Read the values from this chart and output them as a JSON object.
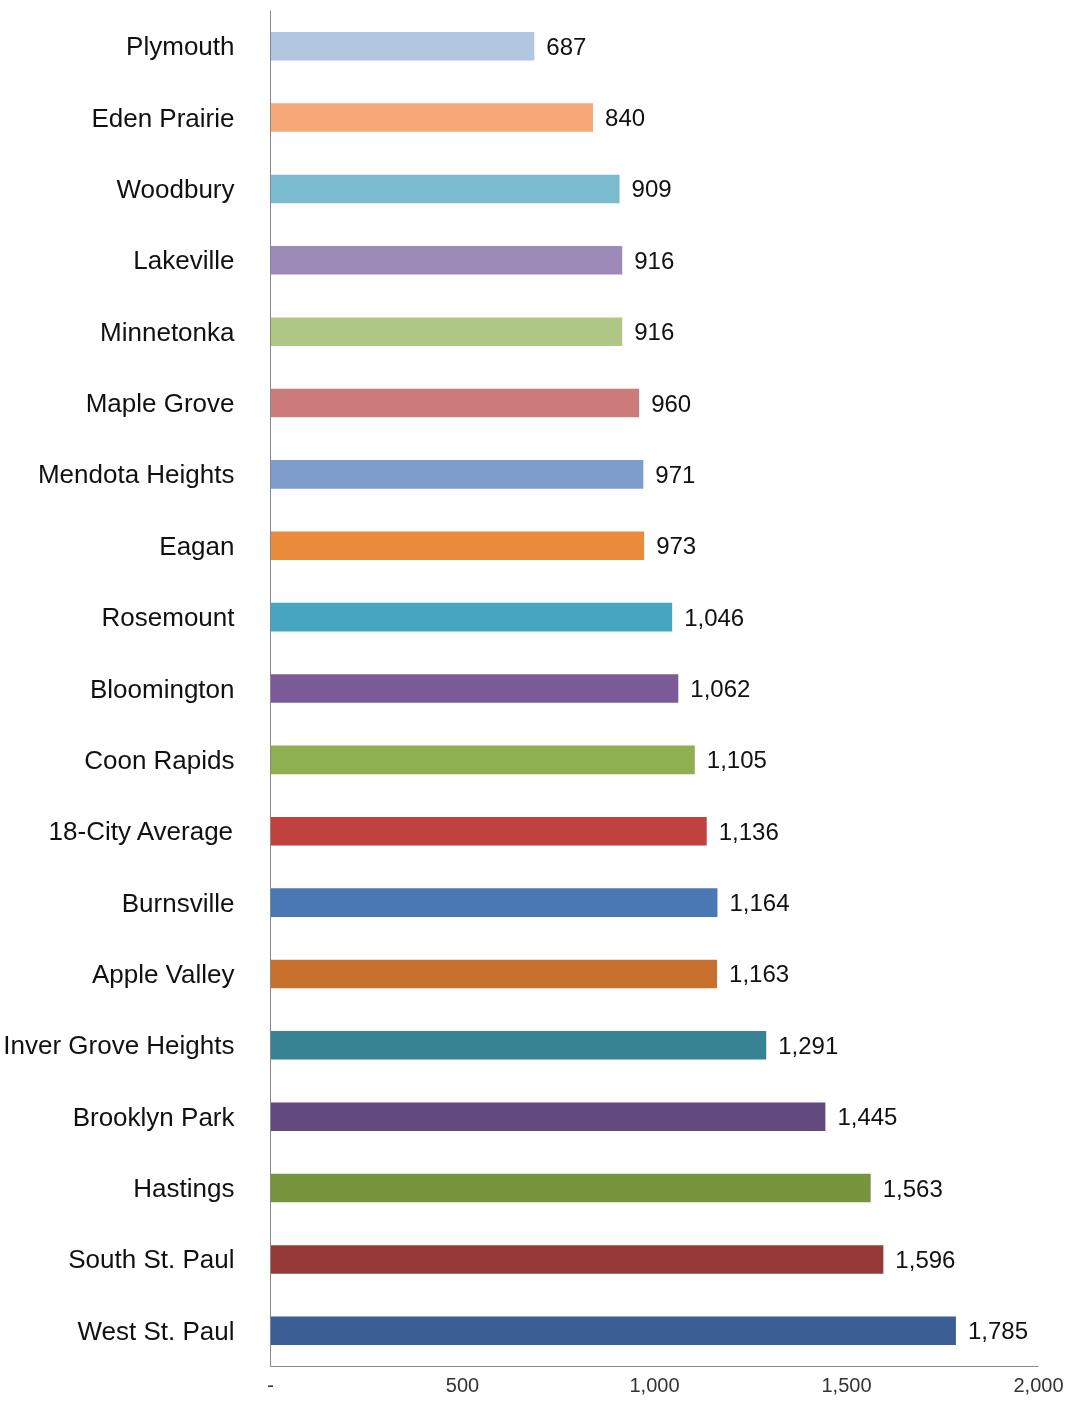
{
  "chart_data": {
    "type": "bar",
    "orientation": "horizontal",
    "categories": [
      "Plymouth",
      "Eden Prairie",
      "Woodbury",
      "Lakeville",
      "Minnetonka",
      "Maple Grove",
      "Mendota Heights",
      "Eagan",
      "Rosemount",
      "Bloomington",
      "Coon Rapids",
      "18-City Average",
      "Burnsville",
      "Apple Valley",
      "Inver Grove Heights",
      "Brooklyn Park",
      "Hastings",
      "South St. Paul",
      "West St. Paul"
    ],
    "values": [
      687,
      840,
      909,
      916,
      916,
      960,
      971,
      973,
      1046,
      1062,
      1105,
      1136,
      1164,
      1163,
      1291,
      1445,
      1563,
      1596,
      1785
    ],
    "colors": [
      "#b3c6e1",
      "#f7a878",
      "#7abbd0",
      "#9d89b8",
      "#afc886",
      "#cc7b7b",
      "#7f9dcc",
      "#e98b3a",
      "#46a5c0",
      "#7a5b98",
      "#8fb050",
      "#c0413e",
      "#4a78b5",
      "#c8712f",
      "#378394",
      "#634a7e",
      "#76953d",
      "#963a37",
      "#3b5f95"
    ],
    "xlim": [
      0,
      2000
    ],
    "xticks": [
      {
        "value": 0,
        "label": "-"
      },
      {
        "value": 500,
        "label": "500"
      },
      {
        "value": 1000,
        "label": "1,000"
      },
      {
        "value": 1500,
        "label": "1,500"
      },
      {
        "value": 2000,
        "label": "2,000"
      }
    ],
    "value_labels": [
      "687",
      "840",
      "909",
      "916",
      "916",
      "960",
      "971",
      "973",
      "1,046",
      "1,062",
      "1,105",
      "1,136",
      "1,164",
      "1,163",
      "1,291",
      "1,445",
      "1,563",
      "1,596",
      "1,785"
    ],
    "grid": false
  }
}
